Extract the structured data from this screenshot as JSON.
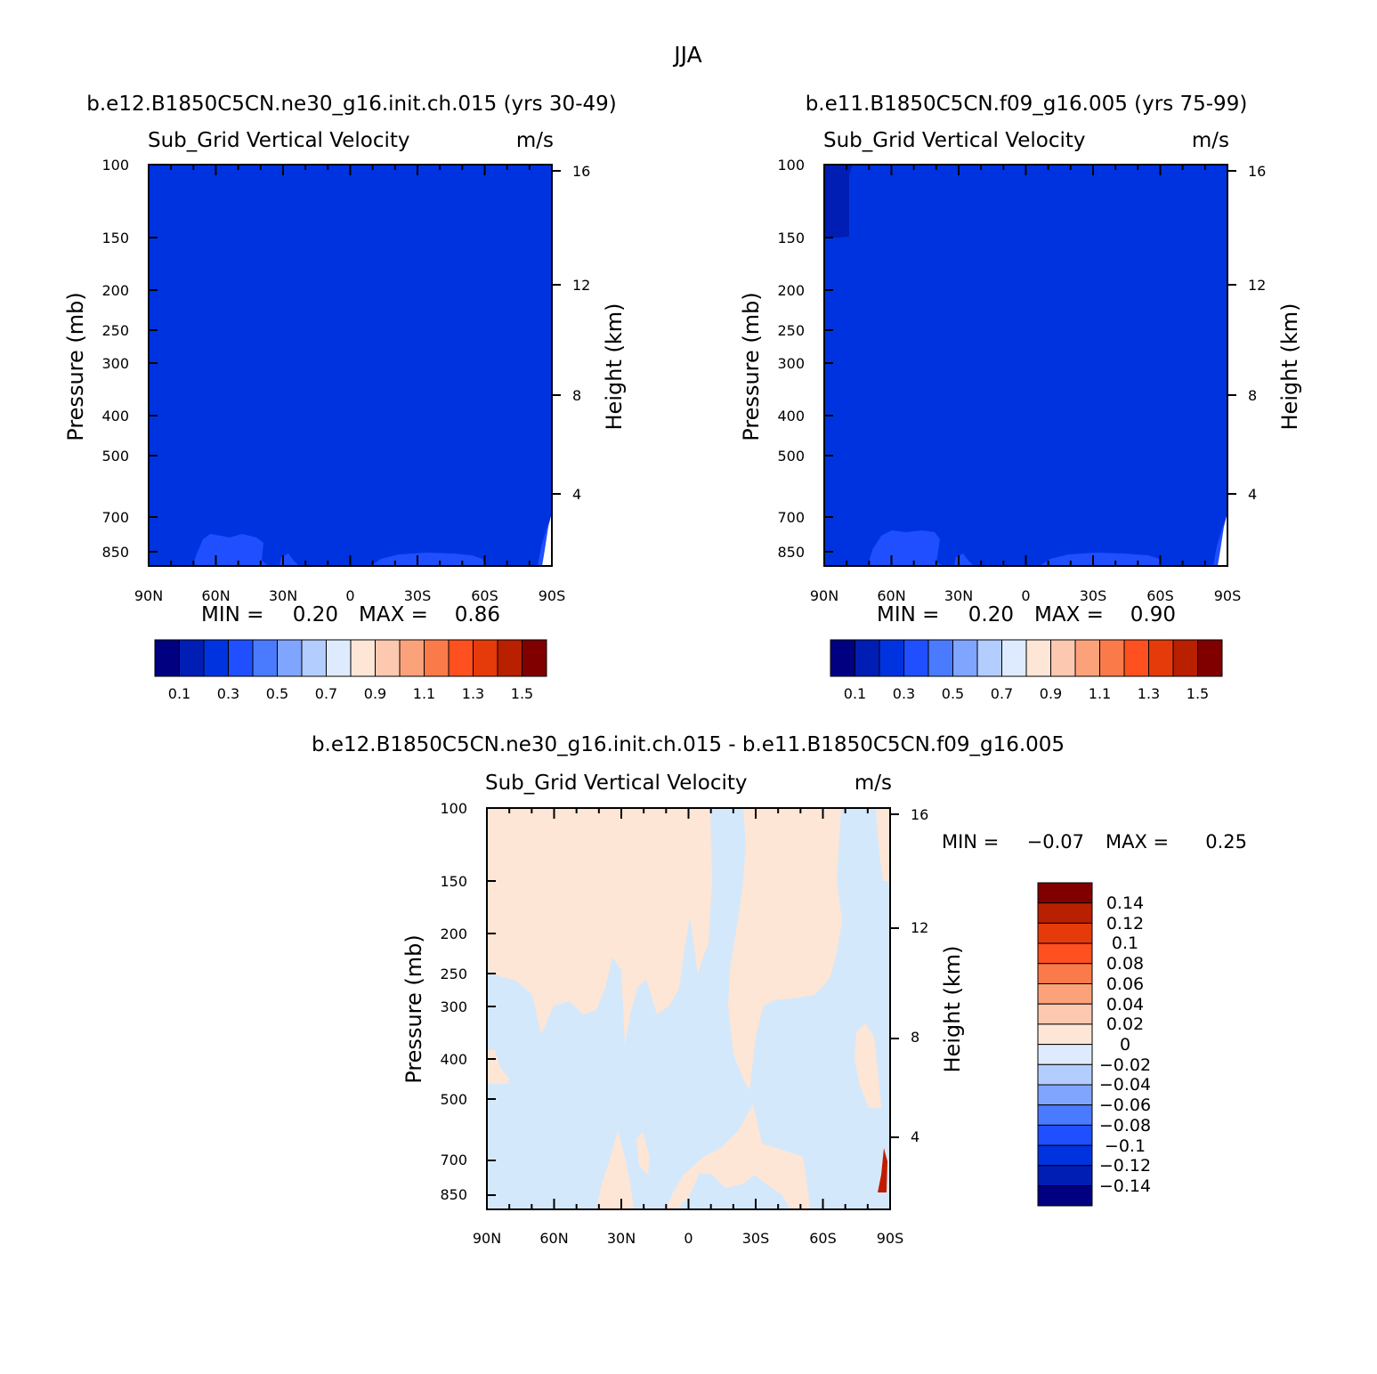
{
  "figure_title": "JJA",
  "colors": {
    "bg_fill_abs": "#0033e0",
    "light_abs": "#1f4fff",
    "diff_pos": "#fde6d6",
    "diff_neg": "#d4e8fb",
    "diff_red": "#c21c00"
  },
  "chart_data": [
    {
      "type": "heatmap",
      "case_title": "b.e12.B1850C5CN.ne30_g16.init.ch.015 (yrs 30-49)",
      "variable_label": "Sub_Grid Vertical Velocity",
      "units_label": "m/s",
      "xlabel": "",
      "ylabel": "Pressure (mb)",
      "y2label": "Height (km)",
      "x_ticks": [
        "90N",
        "60N",
        "30N",
        "0",
        "30S",
        "60S",
        "90S"
      ],
      "y_ticks": [
        "100",
        "150",
        "200",
        "250",
        "300",
        "400",
        "500",
        "700",
        "850"
      ],
      "y2_ticks": [
        "16",
        "12",
        "8",
        "4"
      ],
      "xlim": [
        90,
        -90
      ],
      "ylim": [
        100,
        850
      ],
      "y_scale": "log",
      "min_label": "MIN =",
      "min_value": "0.20",
      "max_label": "MAX =",
      "max_value": "0.86",
      "colorbar": {
        "orientation": "horizontal",
        "labels": [
          "0.1",
          "0.3",
          "0.5",
          "0.7",
          "0.9",
          "1.1",
          "1.3",
          "1.5"
        ],
        "colors": [
          "#000080",
          "#001eb4",
          "#0033e0",
          "#1f4fff",
          "#4a7bff",
          "#7fa5ff",
          "#b4cdff",
          "#deebff",
          "#fde6d6",
          "#fdc8b0",
          "#fca27a",
          "#fb7a4a",
          "#ff5020",
          "#e53a0a",
          "#b82000",
          "#800000"
        ]
      }
    },
    {
      "type": "heatmap",
      "case_title": "b.e11.B1850C5CN.f09_g16.005 (yrs 75-99)",
      "variable_label": "Sub_Grid Vertical Velocity",
      "units_label": "m/s",
      "xlabel": "",
      "ylabel": "Pressure (mb)",
      "y2label": "Height (km)",
      "x_ticks": [
        "90N",
        "60N",
        "30N",
        "0",
        "30S",
        "60S",
        "90S"
      ],
      "y_ticks": [
        "100",
        "150",
        "200",
        "250",
        "300",
        "400",
        "500",
        "700",
        "850"
      ],
      "y2_ticks": [
        "16",
        "12",
        "8",
        "4"
      ],
      "xlim": [
        90,
        -90
      ],
      "ylim": [
        100,
        850
      ],
      "y_scale": "log",
      "min_label": "MIN =",
      "min_value": "0.20",
      "max_label": "MAX =",
      "max_value": "0.90",
      "colorbar": {
        "orientation": "horizontal",
        "labels": [
          "0.1",
          "0.3",
          "0.5",
          "0.7",
          "0.9",
          "1.1",
          "1.3",
          "1.5"
        ],
        "colors": [
          "#000080",
          "#001eb4",
          "#0033e0",
          "#1f4fff",
          "#4a7bff",
          "#7fa5ff",
          "#b4cdff",
          "#deebff",
          "#fde6d6",
          "#fdc8b0",
          "#fca27a",
          "#fb7a4a",
          "#ff5020",
          "#e53a0a",
          "#b82000",
          "#800000"
        ]
      }
    },
    {
      "type": "heatmap",
      "case_title": "b.e12.B1850C5CN.ne30_g16.init.ch.015 - b.e11.B1850C5CN.f09_g16.005",
      "variable_label": "Sub_Grid Vertical Velocity",
      "units_label": "m/s",
      "xlabel": "",
      "ylabel": "Pressure (mb)",
      "y2label": "Height (km)",
      "x_ticks": [
        "90N",
        "60N",
        "30N",
        "0",
        "30S",
        "60S",
        "90S"
      ],
      "y_ticks": [
        "100",
        "150",
        "200",
        "250",
        "300",
        "400",
        "500",
        "700",
        "850"
      ],
      "y2_ticks": [
        "16",
        "12",
        "8",
        "4"
      ],
      "xlim": [
        90,
        -90
      ],
      "ylim": [
        100,
        850
      ],
      "y_scale": "log",
      "min_label": "MIN =",
      "min_value": "-0.07",
      "max_label": "MAX =",
      "max_value": "0.25",
      "colorbar": {
        "orientation": "vertical",
        "labels": [
          "0.14",
          "0.12",
          "0.1",
          "0.08",
          "0.06",
          "0.04",
          "0.02",
          "0",
          "-0.02",
          "-0.04",
          "-0.06",
          "-0.08",
          "-0.1",
          "-0.12",
          "-0.14"
        ],
        "colors": [
          "#800000",
          "#b82000",
          "#e53a0a",
          "#ff5020",
          "#fb7a4a",
          "#fca27a",
          "#fdc8b0",
          "#fde6d6",
          "#deebff",
          "#b4cdff",
          "#7fa5ff",
          "#4a7bff",
          "#1f4fff",
          "#0033e0",
          "#001eb4",
          "#000080"
        ]
      }
    }
  ]
}
